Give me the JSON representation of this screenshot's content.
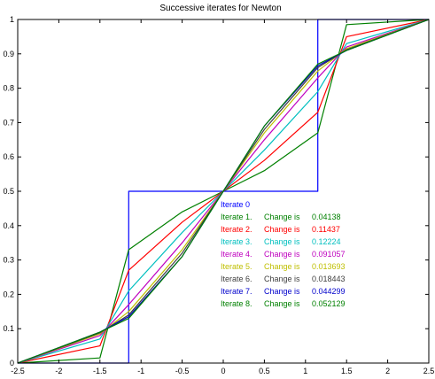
{
  "chart_data": {
    "type": "line",
    "title": "Successive iterates for Newton",
    "xlabel": "",
    "ylabel": "",
    "xlim": [
      -2.5,
      2.5
    ],
    "ylim": [
      0,
      1
    ],
    "xticks": [
      -2.5,
      -2,
      -1.5,
      -1,
      -0.5,
      0,
      0.5,
      1,
      1.5,
      2,
      2.5
    ],
    "yticks": [
      0,
      0.1,
      0.2,
      0.3,
      0.4,
      0.5,
      0.6,
      0.7,
      0.8,
      0.9,
      1
    ],
    "grid": false,
    "x": [
      -2.5,
      -1.5,
      -1.15,
      -0.5,
      0,
      0.5,
      1.15,
      1.5,
      2.5
    ],
    "series": [
      {
        "name": "Iterate 0",
        "change_label": "",
        "change_value": "",
        "color": "#0000ff",
        "values": [
          0,
          0,
          0.5,
          0.5,
          0.5,
          0.5,
          1,
          1,
          1
        ]
      },
      {
        "name": "Iterate 1.",
        "change_label": "Change is",
        "change_value": "0.04138",
        "color": "#008000",
        "values": [
          0,
          0.015,
          0.33,
          0.44,
          0.5,
          0.56,
          0.67,
          0.985,
          1
        ]
      },
      {
        "name": "Iterate 2.",
        "change_label": "Change is",
        "change_value": "0.11437",
        "color": "#ff0000",
        "values": [
          0,
          0.05,
          0.27,
          0.41,
          0.5,
          0.59,
          0.73,
          0.95,
          1
        ]
      },
      {
        "name": "Iterate 3.",
        "change_label": "Change is",
        "change_value": "0.12224",
        "color": "#00bfbf",
        "values": [
          0,
          0.07,
          0.21,
          0.38,
          0.5,
          0.62,
          0.79,
          0.93,
          1
        ]
      },
      {
        "name": "Iterate 4.",
        "change_label": "Change is",
        "change_value": "0.091057",
        "color": "#bf00bf",
        "values": [
          0,
          0.08,
          0.17,
          0.35,
          0.5,
          0.65,
          0.83,
          0.92,
          1
        ]
      },
      {
        "name": "Iterate 5.",
        "change_label": "Change is",
        "change_value": "0.013693",
        "color": "#bfbf00",
        "values": [
          0,
          0.085,
          0.15,
          0.33,
          0.5,
          0.67,
          0.85,
          0.915,
          1
        ]
      },
      {
        "name": "Iterate 6.",
        "change_label": "Change is",
        "change_value": "0.018443",
        "color": "#404040",
        "values": [
          0,
          0.088,
          0.14,
          0.32,
          0.5,
          0.68,
          0.86,
          0.912,
          1
        ]
      },
      {
        "name": "Iterate 7.",
        "change_label": "Change is",
        "change_value": "0.044299",
        "color": "#0000cc",
        "values": [
          0,
          0.09,
          0.135,
          0.31,
          0.5,
          0.69,
          0.865,
          0.91,
          1
        ]
      },
      {
        "name": "Iterate 8.",
        "change_label": "Change is",
        "change_value": "0.052129",
        "color": "#008000",
        "values": [
          0,
          0.09,
          0.13,
          0.31,
          0.5,
          0.69,
          0.87,
          0.91,
          1
        ]
      }
    ]
  }
}
